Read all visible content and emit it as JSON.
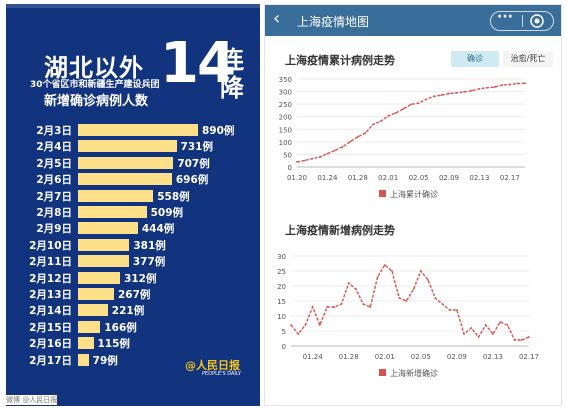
{
  "poster": {
    "headline": "湖北以外",
    "big_number": "14",
    "streak_1": "连",
    "streak_2": "降",
    "subhead_1": "30个省区市和新疆生产建设兵团",
    "subhead_2": "新增确诊病例人数",
    "unit": "例",
    "bar_color": "#ffe08a",
    "background": "#12337e",
    "rows": [
      {
        "date": "2月3日",
        "value": 890
      },
      {
        "date": "2月4日",
        "value": 731
      },
      {
        "date": "2月5日",
        "value": 707
      },
      {
        "date": "2月6日",
        "value": 696
      },
      {
        "date": "2月7日",
        "value": 558
      },
      {
        "date": "2月8日",
        "value": 509
      },
      {
        "date": "2月9日",
        "value": 444
      },
      {
        "date": "2月10日",
        "value": 381
      },
      {
        "date": "2月11日",
        "value": 377
      },
      {
        "date": "2月12日",
        "value": 312
      },
      {
        "date": "2月13日",
        "value": 267
      },
      {
        "date": "2月14日",
        "value": 221
      },
      {
        "date": "2月15日",
        "value": 166
      },
      {
        "date": "2月16日",
        "value": 115
      },
      {
        "date": "2月17日",
        "value": 79
      }
    ],
    "logo_text": "@人民日报",
    "logo_sub": "PEOPLE'S DAILY",
    "watermark": "微博 @人民日报"
  },
  "app": {
    "back_icon": "chevron-left-icon",
    "title": "上海疫情地图",
    "more_glyph": "···",
    "header_color": "#3a6e9a",
    "accent": "#d9534f",
    "tabs": [
      "确诊",
      "治愈/死亡"
    ]
  },
  "chart_data": [
    {
      "type": "line",
      "title": "上海疫情累计病例走势",
      "series": [
        {
          "name": "上海累计确诊",
          "values": [
            20,
            26,
            33,
            40,
            53,
            66,
            80,
            101,
            120,
            135,
            169,
            182,
            203,
            215,
            231,
            249,
            254,
            269,
            281,
            286,
            292,
            295,
            299,
            303,
            311,
            315,
            318,
            326,
            328,
            332,
            333
          ]
        }
      ],
      "x_start": "01.20",
      "x_ticks": [
        "01.20",
        "01.24",
        "01.28",
        "02.01",
        "02.05",
        "02.09",
        "02.13",
        "02.17"
      ],
      "y_ticks": [
        0,
        50,
        100,
        150,
        200,
        250,
        300,
        350
      ],
      "ylim": [
        0,
        350
      ],
      "grid": true,
      "legend": "bottom",
      "color": "#d9534f"
    },
    {
      "type": "line",
      "title": "上海疫情新增病例走势",
      "series": [
        {
          "name": "上海新增确诊",
          "values": [
            7,
            4,
            7,
            13,
            7,
            13,
            13,
            14,
            21,
            19,
            14,
            13,
            23,
            27,
            25,
            16,
            15,
            19,
            25,
            22,
            16,
            14,
            12,
            12,
            4,
            6,
            3,
            7,
            4,
            8,
            7,
            2,
            2,
            3
          ]
        }
      ],
      "x_ticks": [
        "01.24",
        "01.28",
        "02.01",
        "02.05",
        "02.09",
        "02.13",
        "02.17"
      ],
      "y_ticks": [
        0,
        5,
        10,
        15,
        20,
        25,
        30
      ],
      "ylim": [
        0,
        30
      ],
      "grid": true,
      "legend": "bottom",
      "color": "#d9534f"
    }
  ]
}
